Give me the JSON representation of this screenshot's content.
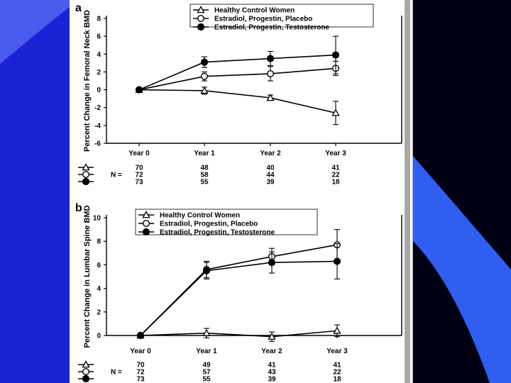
{
  "chart_data": [
    {
      "panel": "a",
      "type": "line",
      "ylabel": "Percent Change in Femoral Neck BMD",
      "ylim": [
        -6,
        8
      ],
      "yticks": [
        -6,
        -4,
        -2,
        0,
        2,
        4,
        6,
        8
      ],
      "categories": [
        "Year 0",
        "Year 1",
        "Year 2",
        "Year 3"
      ],
      "legend_position": "top-right",
      "series": [
        {
          "name": "Healthy Control Women",
          "marker": "triangle",
          "values": [
            0,
            -0.1,
            -0.9,
            -2.6
          ],
          "errors": [
            0,
            0.4,
            0.3,
            1.3
          ],
          "n": [
            70,
            48,
            40,
            41
          ]
        },
        {
          "name": "Estradiol, Progestin, Placebo",
          "marker": "open-circle",
          "values": [
            0,
            1.5,
            1.8,
            2.4
          ],
          "errors": [
            0,
            0.5,
            0.8,
            0.8
          ],
          "n": [
            72,
            58,
            44,
            22
          ]
        },
        {
          "name": "Estradiol, Progestin, Testosterone",
          "marker": "filled-circle",
          "values": [
            0,
            3.1,
            3.5,
            3.9
          ],
          "errors": [
            0,
            0.6,
            0.8,
            2.1
          ],
          "n": [
            73,
            55,
            39,
            18
          ]
        }
      ],
      "n_label": "N ="
    },
    {
      "panel": "b",
      "type": "line",
      "ylabel": "Percent Change in Lumbar Spine BMD",
      "ylim": [
        0,
        10
      ],
      "yticks": [
        0,
        2,
        4,
        6,
        8,
        10
      ],
      "categories": [
        "Year 0",
        "Year 1",
        "Year 2",
        "Year 3"
      ],
      "legend_position": "top-left",
      "series": [
        {
          "name": "Healthy Control Women",
          "marker": "triangle",
          "values": [
            0,
            0.2,
            -0.1,
            0.4
          ],
          "errors": [
            0,
            0.4,
            0.4,
            0.5
          ],
          "n": [
            70,
            49,
            41,
            41
          ]
        },
        {
          "name": "Estradiol, Progestin, Placebo",
          "marker": "open-circle",
          "values": [
            0,
            5.6,
            6.7,
            7.7
          ],
          "errors": [
            0,
            0.7,
            0.7,
            1.3
          ],
          "n": [
            72,
            57,
            43,
            22
          ]
        },
        {
          "name": "Estradiol, Progestin, Testosterone",
          "marker": "filled-circle",
          "values": [
            0,
            5.5,
            6.2,
            6.3
          ],
          "errors": [
            0,
            0.7,
            0.9,
            1.5
          ],
          "n": [
            73,
            55,
            39,
            18
          ]
        }
      ],
      "n_label": "N ="
    }
  ]
}
